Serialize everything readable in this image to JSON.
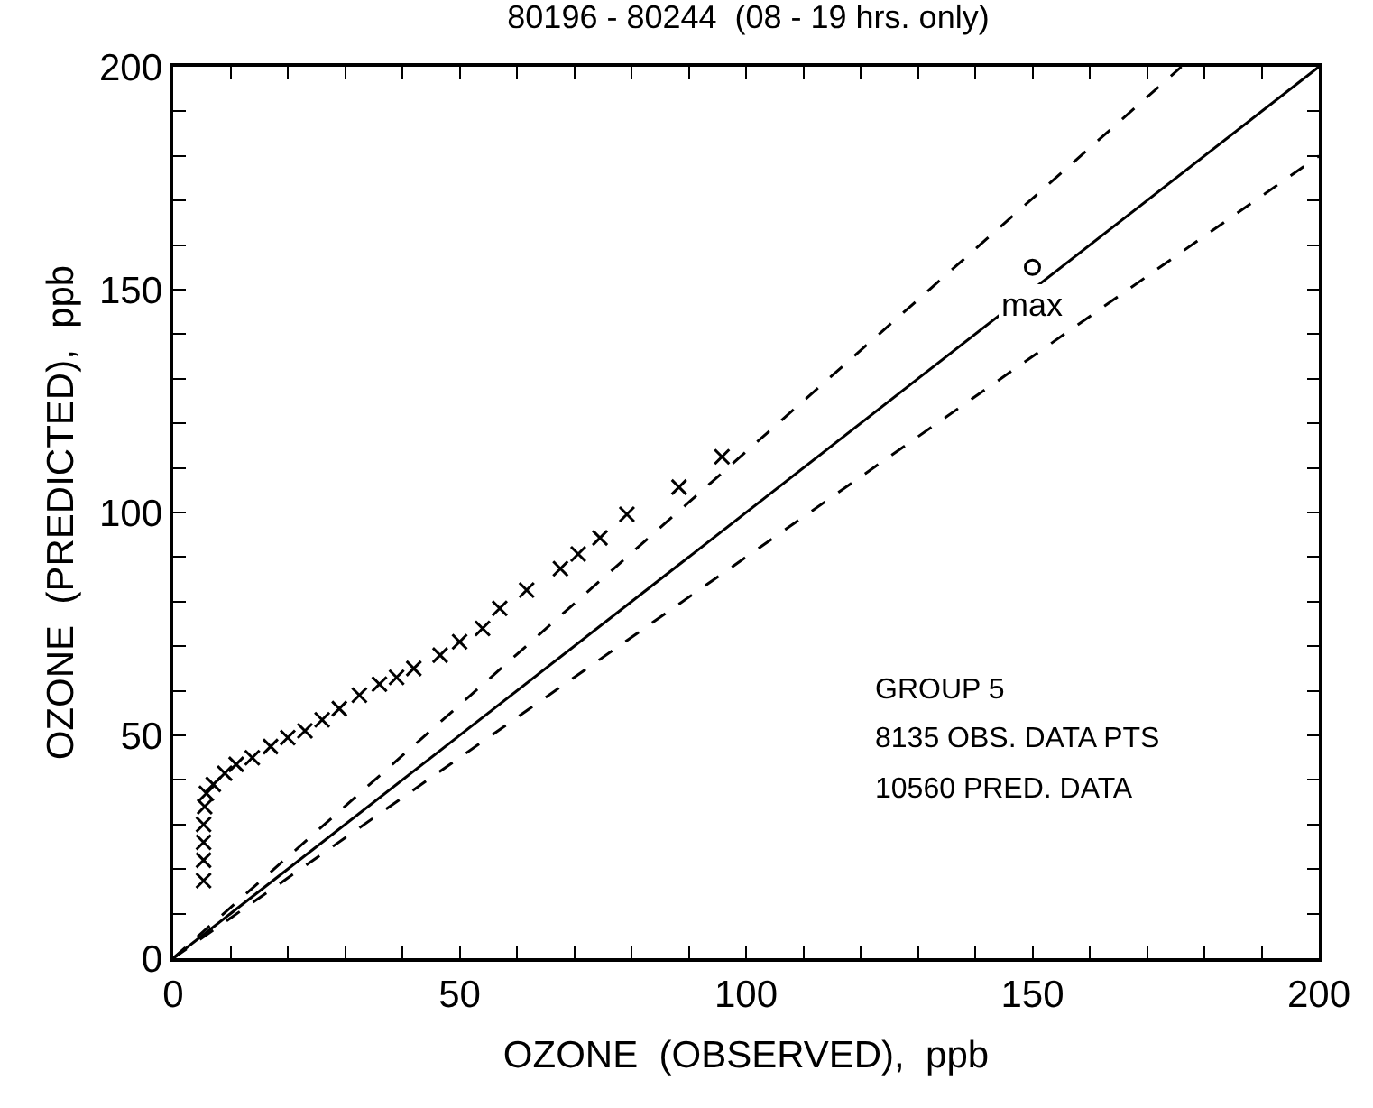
{
  "chart_data": {
    "type": "scatter",
    "title": "80196 - 80244  (08 - 19 hrs. only)",
    "xlabel": "OZONE  (OBSERVED),  ppb",
    "ylabel": "OZONE  (PREDICTED),  ppb",
    "xlim": [
      0,
      200
    ],
    "ylim": [
      0,
      200
    ],
    "xticks": [
      0,
      {
        "value": 10,
        "label": null
      },
      {
        "value": 20,
        "label": null
      },
      {
        "value": 30,
        "label": null
      },
      {
        "value": 40,
        "label": null
      },
      50,
      {
        "value": 60,
        "label": null
      },
      {
        "value": 70,
        "label": null
      },
      {
        "value": 80,
        "label": null
      },
      {
        "value": 90,
        "label": null
      },
      100,
      {
        "value": 110,
        "label": null
      },
      {
        "value": 120,
        "label": null
      },
      {
        "value": 130,
        "label": null
      },
      {
        "value": 140,
        "label": null
      },
      150,
      {
        "value": 160,
        "label": null
      },
      {
        "value": 170,
        "label": null
      },
      {
        "value": 180,
        "label": null
      },
      {
        "value": 190,
        "label": null
      },
      200
    ],
    "yticks": [
      0,
      {
        "value": 10,
        "label": null
      },
      {
        "value": 20,
        "label": null
      },
      {
        "value": 30,
        "label": null
      },
      {
        "value": 40,
        "label": null
      },
      50,
      {
        "value": 60,
        "label": null
      },
      {
        "value": 70,
        "label": null
      },
      {
        "value": 80,
        "label": null
      },
      {
        "value": 90,
        "label": null
      },
      100,
      {
        "value": 110,
        "label": null
      },
      {
        "value": 120,
        "label": null
      },
      {
        "value": 130,
        "label": null
      },
      {
        "value": 140,
        "label": null
      },
      150,
      {
        "value": 160,
        "label": null
      },
      {
        "value": 170,
        "label": null
      },
      {
        "value": 180,
        "label": null
      },
      {
        "value": 190,
        "label": null
      },
      200
    ],
    "series": [
      {
        "marker": "cross",
        "color": "#000000",
        "x": [
          5.3,
          5.3,
          5.3,
          5.3,
          5.5,
          5.8,
          7,
          9,
          11,
          13.8,
          17,
          20,
          23,
          26,
          29,
          32.5,
          36,
          39,
          42,
          46.6,
          50,
          54,
          57,
          61.7,
          67.6,
          70.7,
          74.5,
          79.2,
          88.3,
          95.8
        ],
        "values": [
          17.4,
          22,
          26,
          30,
          34,
          37,
          39,
          41.5,
          43.5,
          45,
          47.5,
          49.5,
          51,
          53.5,
          56,
          59,
          61.5,
          63,
          65,
          68,
          71,
          74,
          78.5,
          82.6,
          87.4,
          90.7,
          94.3,
          99.6,
          105.7,
          112.5
        ]
      },
      {
        "type": "line",
        "line_style": "dashed",
        "color": "#000000",
        "x": [
          0,
          176
        ],
        "values": [
          0,
          200
        ]
      },
      {
        "type": "line",
        "line_style": "solid",
        "color": "#000000",
        "x": [
          0,
          200
        ],
        "values": [
          0,
          200
        ]
      },
      {
        "type": "line",
        "line_style": "dashed",
        "color": "#000000",
        "x": [
          0,
          200
        ],
        "values": [
          0,
          180
        ]
      },
      {
        "marker": "circle",
        "color": "#000000",
        "x": [
          150
        ],
        "values": [
          155
        ]
      }
    ],
    "annotations": [
      {
        "text": "max",
        "x": 150,
        "y": 155
      },
      "GROUP 5",
      "8135 OBS. DATA PTS",
      "10560 PRED. DATA"
    ]
  }
}
